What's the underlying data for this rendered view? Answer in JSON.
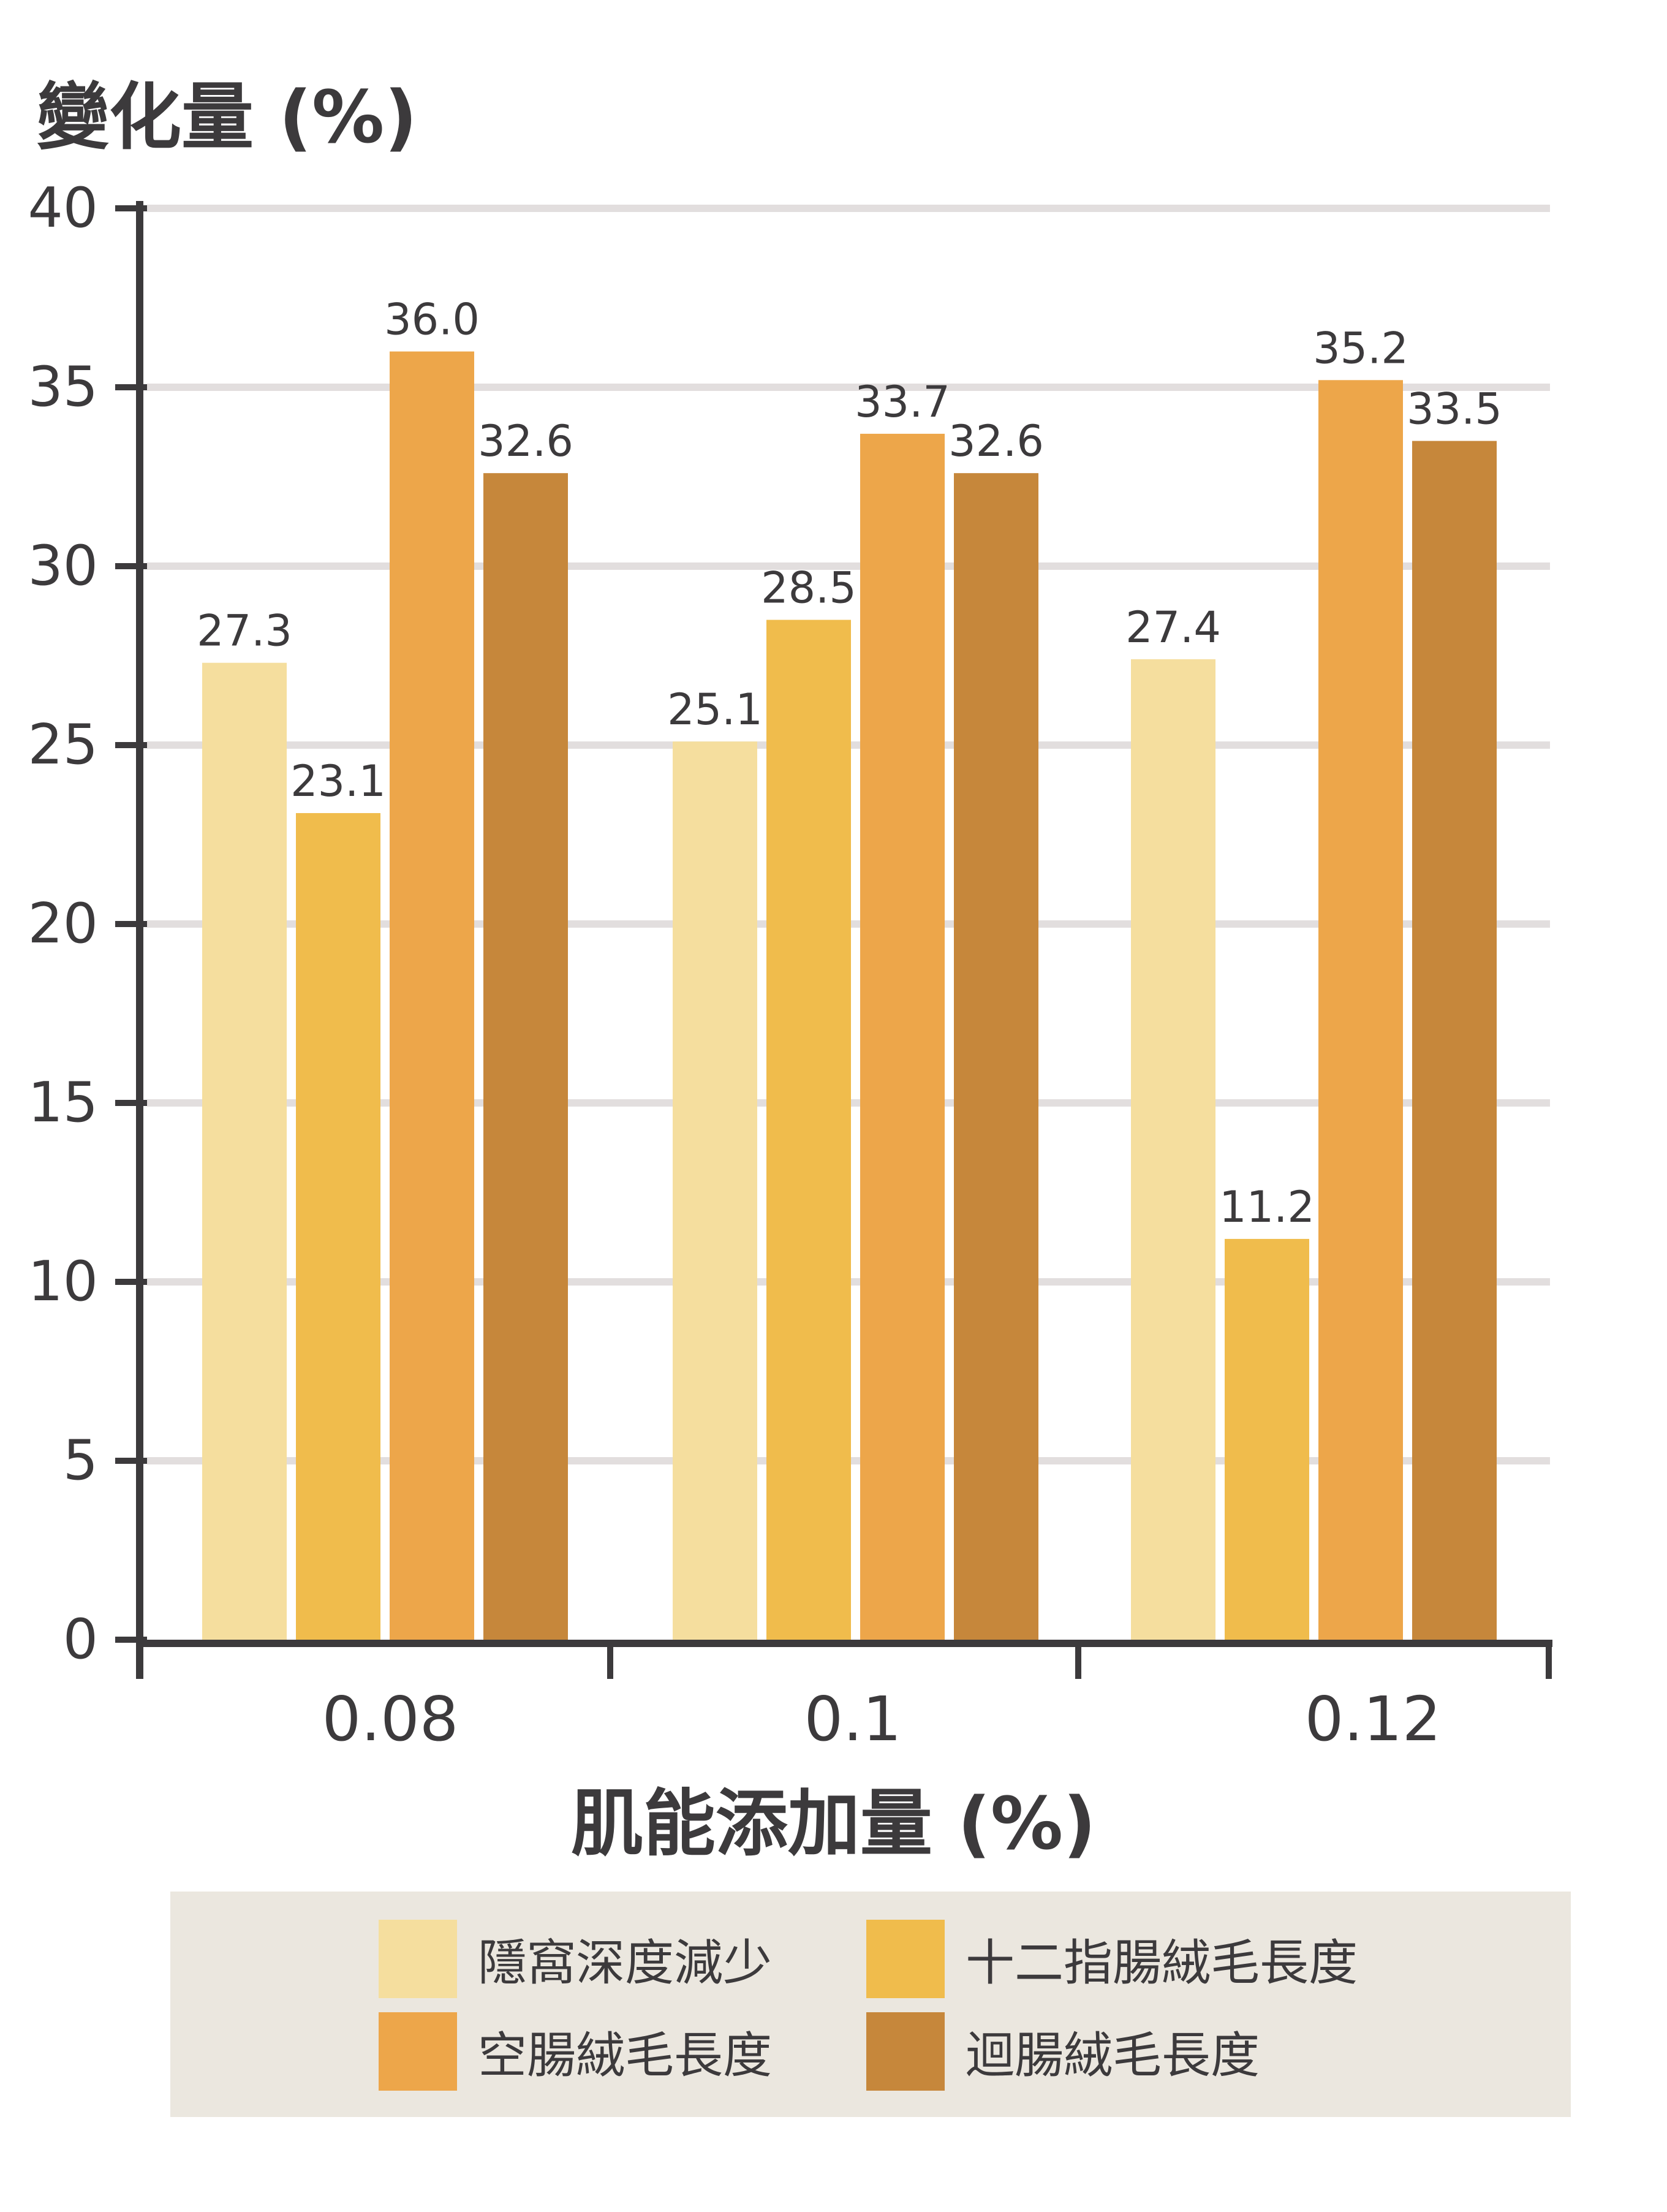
{
  "chart_data": {
    "type": "bar",
    "ylabel": "變化量 (%)",
    "xlabel": "肌能添加量 (%)",
    "categories": [
      "0.08",
      "0.1",
      "0.12"
    ],
    "ylim": [
      0,
      40
    ],
    "yticks": [
      0,
      5,
      10,
      15,
      20,
      25,
      30,
      35,
      40
    ],
    "grid": true,
    "legend_position": "bottom",
    "series": [
      {
        "name": "隱窩深度減少",
        "color": "#f5de9e",
        "values": [
          27.3,
          25.1,
          27.4
        ]
      },
      {
        "name": "十二指腸絨毛長度",
        "color": "#f0bc4c",
        "values": [
          23.1,
          28.5,
          11.2
        ]
      },
      {
        "name": "空腸絨毛長度",
        "color": "#eda64a",
        "values": [
          36.0,
          33.7,
          35.2
        ]
      },
      {
        "name": "迴腸絨毛長度",
        "color": "#c6873b",
        "values": [
          32.6,
          32.6,
          33.5
        ]
      }
    ],
    "data_labels": [
      [
        "27.3",
        "25.1",
        "27.4"
      ],
      [
        "23.1",
        "28.5",
        "11.2"
      ],
      [
        "36.0",
        "33.7",
        "35.2"
      ],
      [
        "32.6",
        "32.6",
        "33.5"
      ]
    ]
  },
  "colors": {
    "axis": "#3c3a3c",
    "grid": "#e2dede",
    "legend_bg": "#ebe7df"
  }
}
